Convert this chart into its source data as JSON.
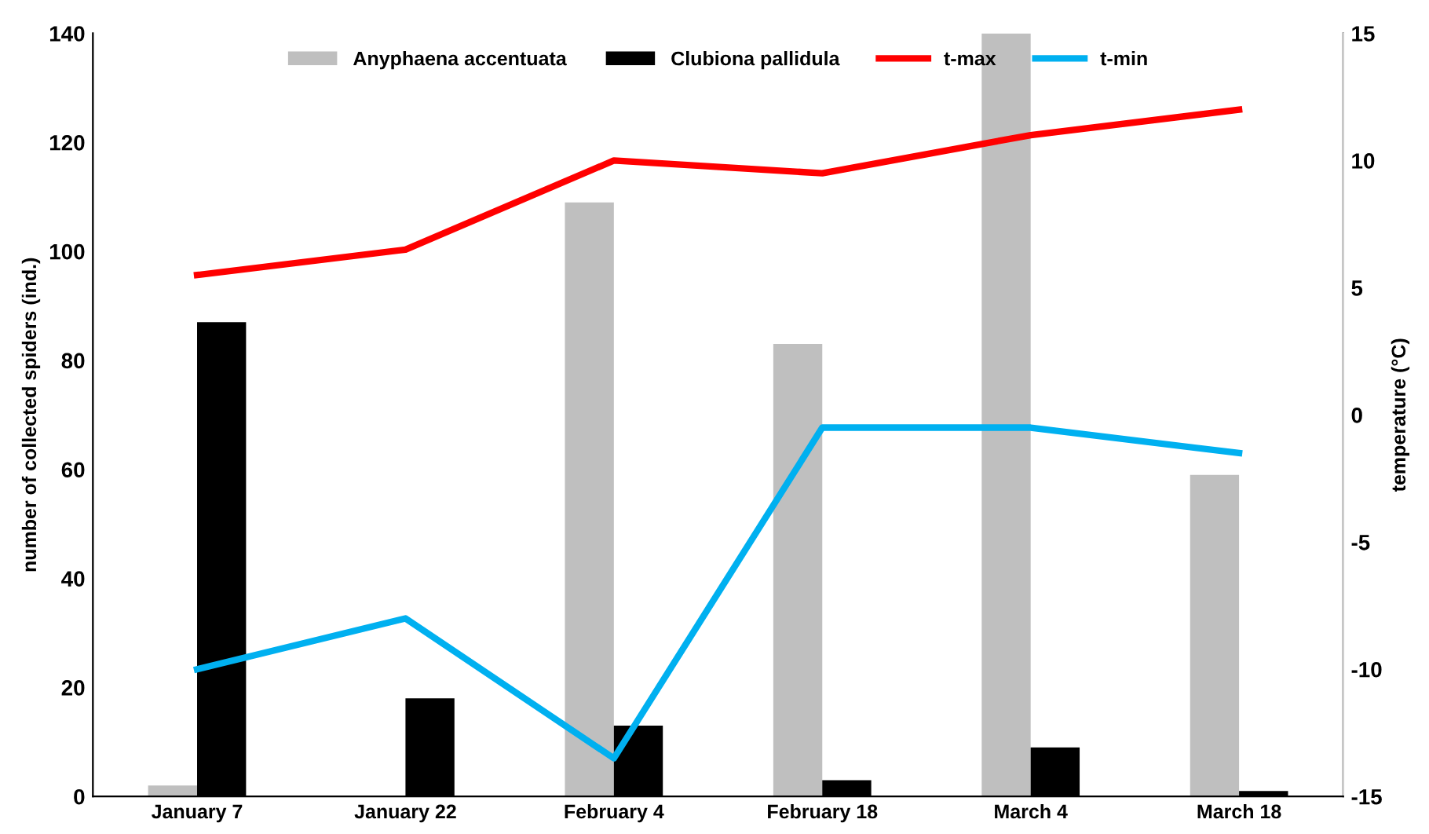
{
  "chart_data": {
    "type": "bar",
    "ylabel": "number of collected spiders (ind.)",
    "y2label": "temperature (°C)",
    "categories": [
      "January 7",
      "January 22",
      "February 4",
      "February 18",
      "March 4",
      "March 18"
    ],
    "series": [
      {
        "name": "Anyphaena accentuata",
        "color": "#bfbfbf",
        "values": [
          2,
          0,
          109,
          83,
          140,
          59
        ]
      },
      {
        "name": "Clubiona pallidula",
        "color": "#000000",
        "values": [
          87,
          18,
          13,
          3,
          9,
          1
        ]
      },
      {
        "name": "t-max",
        "type": "line",
        "axis": "y2",
        "color": "#ff0000",
        "values": [
          5.5,
          6.5,
          10,
          9.5,
          11,
          12
        ]
      },
      {
        "name": "t-min",
        "type": "line",
        "axis": "y2",
        "color": "#00b0f0",
        "values": [
          -10,
          -8,
          -13.5,
          -0.5,
          -0.5,
          -1.5
        ]
      }
    ],
    "ylim": [
      0,
      140
    ],
    "yticks": [
      0,
      20,
      40,
      60,
      80,
      100,
      120,
      140
    ],
    "y2lim": [
      -15,
      15
    ],
    "y2ticks": [
      -15,
      -10,
      -5,
      0,
      5,
      10,
      15
    ],
    "grid": false,
    "legend": "top",
    "marker": "none",
    "line_style": "solid"
  }
}
